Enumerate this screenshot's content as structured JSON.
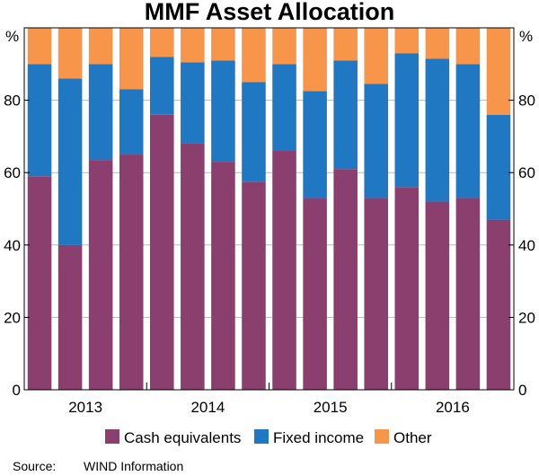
{
  "chart_data": {
    "type": "bar",
    "stacked": true,
    "title": "MMF Asset Allocation",
    "y_unit_left": "%",
    "y_unit_right": "%",
    "ylim": [
      0,
      100
    ],
    "yticks": [
      0,
      20,
      40,
      60,
      80
    ],
    "year_labels": [
      "2013",
      "2014",
      "2015",
      "2016"
    ],
    "bars_per_year": 4,
    "categories": [
      "Q1 2013",
      "Q2 2013",
      "Q3 2013",
      "Q4 2013",
      "Q1 2014",
      "Q2 2014",
      "Q3 2014",
      "Q4 2014",
      "Q1 2015",
      "Q2 2015",
      "Q3 2015",
      "Q4 2015",
      "Q1 2016",
      "Q2 2016",
      "Q3 2016",
      "Q4 2016"
    ],
    "series": [
      {
        "name": "Cash equivalents",
        "color": "#8a3f6f",
        "values": [
          59,
          40,
          63.5,
          65,
          76,
          68,
          63,
          57.5,
          66,
          53,
          61,
          53,
          56,
          52,
          53,
          47
        ]
      },
      {
        "name": "Fixed income",
        "color": "#1f78c1",
        "values": [
          31,
          46,
          26.5,
          18,
          16,
          22.5,
          28,
          27.5,
          24,
          29.5,
          30,
          31.5,
          37,
          39.5,
          37,
          29
        ]
      },
      {
        "name": "Other",
        "color": "#f7964a",
        "values": [
          10,
          14,
          10,
          17,
          8,
          9.5,
          9,
          15,
          10,
          17.5,
          9,
          15.5,
          7,
          8.5,
          10,
          24
        ]
      }
    ],
    "legend": [
      "Cash equivalents",
      "Fixed income",
      "Other"
    ],
    "legend_position": "bottom"
  },
  "source_label": "Source:",
  "source_text": "WIND Information"
}
